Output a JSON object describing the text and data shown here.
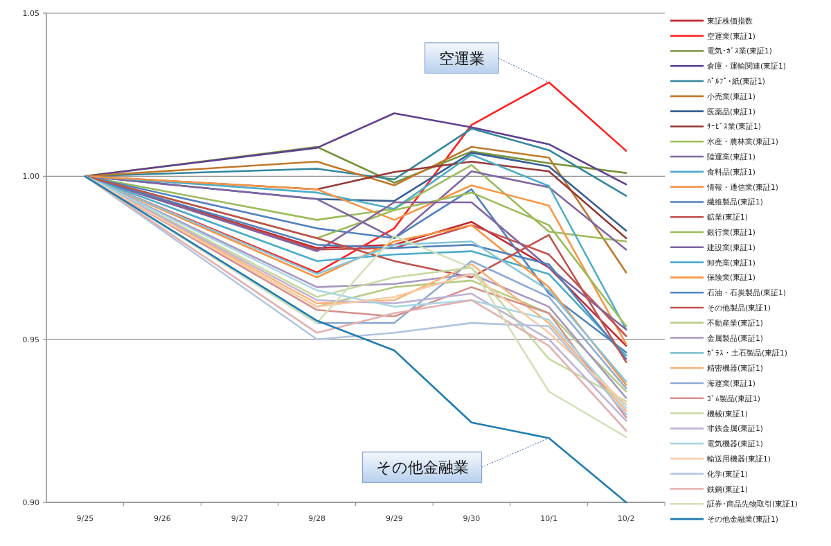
{
  "chart_data": {
    "type": "line",
    "categories": [
      "9/25",
      "9/26",
      "9/27",
      "9/28",
      "9/29",
      "9/30",
      "10/1",
      "10/2"
    ],
    "ylim": [
      0.9,
      1.05
    ],
    "yticks": [
      {
        "value": 0.9,
        "label": "0.90"
      },
      {
        "value": 0.95,
        "label": "0.95"
      },
      {
        "value": 1.0,
        "label": "1.00"
      },
      {
        "value": 1.05,
        "label": "1.05"
      }
    ],
    "grid": "y",
    "legend": "right",
    "annotations": [
      {
        "text": "空運業",
        "x": "10/1",
        "y": 1.0288
      },
      {
        "text": "その他金融業",
        "x": "10/1",
        "y": 0.9197
      }
    ],
    "series": [
      {
        "name": "東証株価指数",
        "color": "#c0272d",
        "values": [
          1.0,
          null,
          null,
          0.978,
          0.979,
          0.986,
          0.972,
          0.948
        ]
      },
      {
        "name": "空運業(東証1)",
        "color": "#ff2020",
        "values": [
          1.0,
          null,
          null,
          0.9705,
          0.984,
          1.0157,
          1.0288,
          1.0078
        ]
      },
      {
        "name": "電気･ｶﾞｽ業(東証1)",
        "color": "#77933c",
        "values": [
          1.0,
          null,
          null,
          1.009,
          0.998,
          1.0076,
          1.004,
          1.001
        ]
      },
      {
        "name": "倉庫・運輸関連(東証1)",
        "color": "#5f3f8f",
        "values": [
          1.0,
          null,
          null,
          1.0087,
          1.0193,
          1.015,
          1.0098,
          0.9975
        ]
      },
      {
        "name": "ﾊﾟﾙﾌﾟ･紙(東証1)",
        "color": "#31859c",
        "values": [
          1.0,
          null,
          null,
          1.0023,
          0.999,
          1.0146,
          1.008,
          0.994
        ]
      },
      {
        "name": "小売業(東証1)",
        "color": "#c0782a",
        "values": [
          1.0,
          null,
          null,
          1.0045,
          0.9972,
          1.009,
          1.0057,
          0.9705
        ]
      },
      {
        "name": "医薬品(東証1)",
        "color": "#376092",
        "values": [
          1.0,
          null,
          null,
          0.993,
          0.9924,
          1.0072,
          1.003,
          0.9833
        ]
      },
      {
        "name": "ｻｰﾋﾞｽ業(東証1)",
        "color": "#953735",
        "values": [
          1.0,
          null,
          null,
          0.996,
          1.0013,
          1.0045,
          1.0015,
          0.981
        ]
      },
      {
        "name": "水産・農林業(東証1)",
        "color": "#9bbb59",
        "values": [
          1.0,
          null,
          null,
          0.9866,
          0.99,
          1.0034,
          0.983,
          0.98
        ]
      },
      {
        "name": "陸運業(東証1)",
        "color": "#8064a2",
        "values": [
          1.0,
          null,
          null,
          0.993,
          0.981,
          1.0015,
          0.9966,
          0.9775
        ]
      },
      {
        "name": "食料品(東証1)",
        "color": "#4bacc6",
        "values": [
          1.0,
          null,
          null,
          0.995,
          0.99,
          1.0066,
          0.997,
          0.953
        ]
      },
      {
        "name": "情報・通信業(東証1)",
        "color": "#f79646",
        "values": [
          1.0,
          null,
          null,
          0.996,
          0.9866,
          0.9972,
          0.991,
          0.9485
        ]
      },
      {
        "name": "繊維製品(東証1)",
        "color": "#4f81bd",
        "values": [
          1.0,
          null,
          null,
          0.984,
          0.981,
          0.996,
          0.964,
          0.946
        ]
      },
      {
        "name": "鉱業(東証1)",
        "color": "#c0504d",
        "values": [
          1.0,
          null,
          null,
          0.9775,
          0.978,
          0.985,
          0.976,
          0.951
        ]
      },
      {
        "name": "銀行業(東証1)",
        "color": "#9bbb59",
        "values": [
          1.0,
          null,
          null,
          0.981,
          0.9896,
          0.995,
          0.985,
          0.954
        ]
      },
      {
        "name": "建設業(東証1)",
        "color": "#8064a2",
        "values": [
          1.0,
          null,
          null,
          0.977,
          0.992,
          0.992,
          0.972,
          0.953
        ]
      },
      {
        "name": "卸売業(東証1)",
        "color": "#4bacc6",
        "values": [
          1.0,
          null,
          null,
          0.974,
          0.976,
          0.977,
          0.97,
          0.945
        ]
      },
      {
        "name": "保険業(東証1)",
        "color": "#f79646",
        "values": [
          1.0,
          null,
          null,
          0.969,
          0.98,
          0.985,
          0.966,
          0.936
        ]
      },
      {
        "name": "石油・石炭製品(東証1)",
        "color": "#4f81bd",
        "values": [
          1.0,
          null,
          null,
          0.979,
          0.978,
          0.979,
          0.973,
          0.944
        ]
      },
      {
        "name": "その他製品(東証1)",
        "color": "#c0504d",
        "values": [
          1.0,
          null,
          null,
          0.981,
          0.974,
          0.969,
          0.982,
          0.943
        ]
      },
      {
        "name": "不動産業(東証1)",
        "color": "#b5cc80",
        "values": [
          1.0,
          null,
          null,
          0.96,
          0.966,
          0.968,
          0.958,
          0.934
        ]
      },
      {
        "name": "金属製品(東証1)",
        "color": "#a796c0",
        "values": [
          1.0,
          null,
          null,
          0.966,
          0.967,
          0.97,
          0.96,
          0.932
        ]
      },
      {
        "name": "ｶﾞﾗｽ・土石製品(東証1)",
        "color": "#86c3d6",
        "values": [
          1.0,
          null,
          null,
          0.97,
          0.979,
          0.98,
          0.965,
          0.937
        ]
      },
      {
        "name": "精密機器(東証1)",
        "color": "#f9b47c",
        "values": [
          1.0,
          null,
          null,
          0.961,
          0.962,
          0.973,
          0.955,
          0.928
        ]
      },
      {
        "name": "海運業(東証1)",
        "color": "#8ea9d3",
        "values": [
          1.0,
          null,
          null,
          0.955,
          0.955,
          0.974,
          0.963,
          0.935
        ]
      },
      {
        "name": "ｺﾞﾑ製品(東証1)",
        "color": "#d58e8c",
        "values": [
          1.0,
          null,
          null,
          0.959,
          0.957,
          0.966,
          0.958,
          0.926
        ]
      },
      {
        "name": "機械(東証1)",
        "color": "#c6d9a0",
        "values": [
          1.0,
          null,
          null,
          0.963,
          0.969,
          0.972,
          0.944,
          0.931
        ]
      },
      {
        "name": "非鉄金属(東証1)",
        "color": "#bfb2d4",
        "values": [
          1.0,
          null,
          null,
          0.962,
          0.961,
          0.964,
          0.95,
          0.925
        ]
      },
      {
        "name": "電気機器(東証1)",
        "color": "#a9d6e3",
        "values": [
          1.0,
          null,
          null,
          0.965,
          0.96,
          0.962,
          0.956,
          0.929
        ]
      },
      {
        "name": "輸送用機器(東証1)",
        "color": "#fbcaa4",
        "values": [
          1.0,
          null,
          null,
          0.96,
          0.963,
          0.97,
          0.952,
          0.93
        ]
      },
      {
        "name": "化学(東証1)",
        "color": "#b0c4e0",
        "values": [
          1.0,
          null,
          null,
          0.95,
          0.952,
          0.955,
          0.954,
          0.927
        ]
      },
      {
        "name": "鉄鋼(東証1)",
        "color": "#e2b0ae",
        "values": [
          1.0,
          null,
          null,
          0.952,
          0.958,
          0.962,
          0.948,
          0.922
        ]
      },
      {
        "name": "証券･商品先物取引(東証1)",
        "color": "#d2e0b8",
        "values": [
          1.0,
          null,
          null,
          0.955,
          0.9817,
          0.972,
          0.934,
          0.92
        ]
      },
      {
        "name": "その他金融業(東証1)",
        "color": "#1f7bb0",
        "values": [
          1.0,
          null,
          null,
          0.9557,
          0.9466,
          0.9245,
          0.9197,
          0.9
        ]
      }
    ]
  }
}
